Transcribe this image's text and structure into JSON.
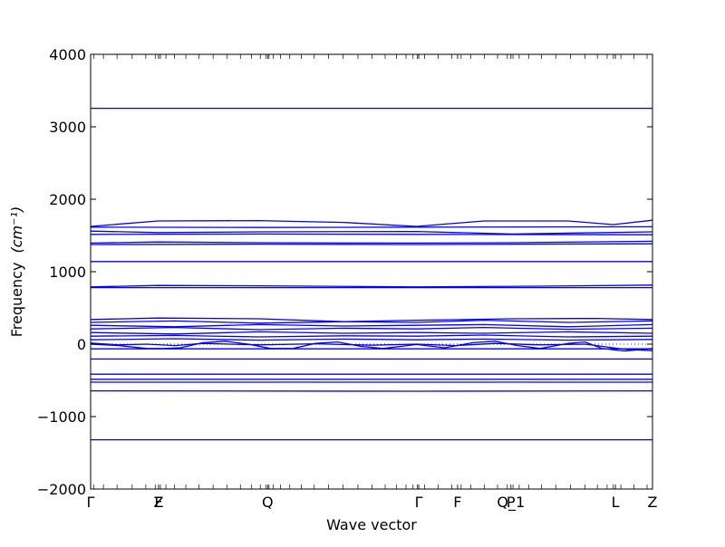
{
  "chart_data": {
    "type": "line",
    "title": "",
    "xlabel": "Wave vector",
    "ylabel": "Frequency",
    "ylabel_unit": "(cm⁻¹)",
    "ylim": [
      -2000,
      4000
    ],
    "yticks": [
      -2000,
      -1000,
      0,
      1000,
      2000,
      3000,
      4000
    ],
    "ytick_labels": [
      "−2000",
      "−1000",
      "0",
      "1000",
      "2000",
      "3000",
      "4000"
    ],
    "x_path": [
      {
        "label": "Γ",
        "x": 0.0
      },
      {
        "label": "F",
        "x": 0.121
      },
      {
        "label": "Z",
        "x": 0.121
      },
      {
        "label": "Q",
        "x": 0.315
      },
      {
        "label": "Γ",
        "x": 0.584
      },
      {
        "label": "F",
        "x": 0.653
      },
      {
        "label": "P",
        "x": 0.748
      },
      {
        "label": "Q_1",
        "x": 0.748
      },
      {
        "label": "L",
        "x": 0.934
      },
      {
        "label": "Z",
        "x": 1.0
      }
    ],
    "xlim": [
      0,
      1
    ],
    "grid": false,
    "legend": "none",
    "line_color": "#0000ff",
    "zero_line_style": "dotted",
    "series": [
      {
        "x": [
          0,
          1
        ],
        "y": [
          3255,
          3255
        ]
      },
      {
        "x": [
          0,
          0.12,
          0.3,
          0.45,
          0.58,
          0.7,
          0.85,
          0.93,
          1
        ],
        "y": [
          1625,
          1700,
          1705,
          1680,
          1625,
          1700,
          1700,
          1650,
          1710
        ]
      },
      {
        "x": [
          0,
          0.3,
          0.58,
          1
        ],
        "y": [
          1615,
          1610,
          1615,
          1620
        ]
      },
      {
        "x": [
          0,
          0.12,
          0.3,
          0.58,
          0.75,
          1
        ],
        "y": [
          1560,
          1540,
          1550,
          1555,
          1520,
          1550
        ]
      },
      {
        "x": [
          0,
          0.3,
          0.58,
          1
        ],
        "y": [
          1515,
          1520,
          1515,
          1510
        ]
      },
      {
        "x": [
          0,
          0.12,
          0.3,
          0.58,
          0.75,
          1
        ],
        "y": [
          1395,
          1410,
          1400,
          1395,
          1400,
          1420
        ]
      },
      {
        "x": [
          0,
          0.3,
          0.58,
          1
        ],
        "y": [
          1375,
          1380,
          1375,
          1385
        ]
      },
      {
        "x": [
          0,
          1
        ],
        "y": [
          1140,
          1140
        ]
      },
      {
        "x": [
          0,
          0.12,
          0.3,
          0.58,
          0.8,
          1
        ],
        "y": [
          790,
          810,
          805,
          790,
          800,
          815
        ]
      },
      {
        "x": [
          0,
          0.58,
          1
        ],
        "y": [
          780,
          780,
          780
        ]
      },
      {
        "x": [
          0,
          0.12,
          0.3,
          0.45,
          0.58,
          0.75,
          0.9,
          1
        ],
        "y": [
          340,
          360,
          350,
          310,
          330,
          350,
          355,
          340
        ]
      },
      {
        "x": [
          0,
          0.15,
          0.3,
          0.45,
          0.58,
          0.7,
          0.85,
          1
        ],
        "y": [
          300,
          320,
          290,
          310,
          300,
          330,
          300,
          320
        ]
      },
      {
        "x": [
          0,
          0.15,
          0.3,
          0.45,
          0.58,
          0.7,
          0.85,
          1
        ],
        "y": [
          260,
          240,
          270,
          250,
          260,
          270,
          240,
          270
        ]
      },
      {
        "x": [
          0,
          0.15,
          0.3,
          0.45,
          0.58,
          0.7,
          0.85,
          1
        ],
        "y": [
          210,
          230,
          200,
          220,
          210,
          230,
          205,
          220
        ]
      },
      {
        "x": [
          0,
          0.15,
          0.3,
          0.45,
          0.58,
          0.7,
          0.85,
          1
        ],
        "y": [
          160,
          140,
          170,
          150,
          160,
          150,
          170,
          150
        ]
      },
      {
        "x": [
          0,
          0.15,
          0.3,
          0.45,
          0.58,
          0.7,
          0.85,
          1
        ],
        "y": [
          110,
          120,
          100,
          115,
          110,
          125,
          100,
          110
        ]
      },
      {
        "x": [
          0,
          0.15,
          0.3,
          0.45,
          0.58,
          0.7,
          0.85,
          1
        ],
        "y": [
          60,
          75,
          55,
          70,
          60,
          70,
          55,
          65
        ]
      },
      {
        "x": [
          0,
          0.05,
          0.1,
          0.13,
          0.16,
          0.2,
          0.24,
          0.28,
          0.32,
          0.36,
          0.4,
          0.44,
          0.48,
          0.52,
          0.58,
          0.63,
          0.68,
          0.72,
          0.76,
          0.8,
          0.85,
          0.88,
          0.91,
          0.95,
          1
        ],
        "y": [
          0,
          -20,
          -60,
          -60,
          -50,
          20,
          40,
          0,
          -60,
          -60,
          10,
          30,
          -30,
          -60,
          -5,
          -50,
          20,
          40,
          -20,
          -60,
          10,
          30,
          -60,
          -95,
          -60
        ]
      },
      {
        "x": [
          0,
          0.05,
          0.1,
          0.15,
          0.2,
          0.3,
          0.4,
          0.5,
          0.58,
          0.65,
          0.72,
          0.8,
          0.88,
          0.95,
          1
        ],
        "y": [
          15,
          -10,
          0,
          -20,
          10,
          -10,
          5,
          -15,
          0,
          -20,
          10,
          -10,
          0,
          -70,
          -90
        ]
      },
      {
        "x": [
          0,
          1
        ],
        "y": [
          -65,
          -65
        ]
      },
      {
        "x": [
          0,
          1
        ],
        "y": [
          -205,
          -205
        ]
      },
      {
        "x": [
          0,
          1
        ],
        "y": [
          -415,
          -415
        ]
      },
      {
        "x": [
          0,
          1
        ],
        "y": [
          -485,
          -485
        ]
      },
      {
        "x": [
          0,
          1
        ],
        "y": [
          -525,
          -525
        ]
      },
      {
        "x": [
          0,
          0.58,
          1
        ],
        "y": [
          -645,
          -650,
          -645
        ]
      },
      {
        "x": [
          0,
          1
        ],
        "y": [
          -1320,
          -1320
        ]
      }
    ]
  }
}
